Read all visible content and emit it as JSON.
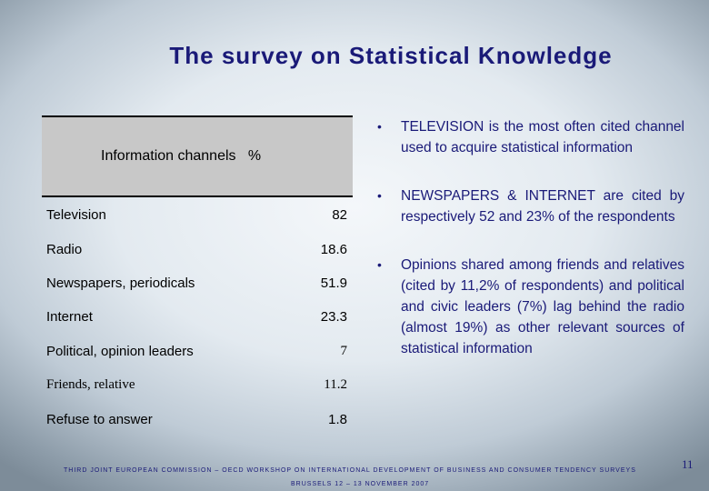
{
  "title": "The survey on Statistical Knowledge",
  "table": {
    "header": "Information channels   %",
    "rows": [
      {
        "label": "Television",
        "value": "82"
      },
      {
        "label": "Radio",
        "value": "18.6"
      },
      {
        "label": "Newspapers, periodicals",
        "value": "51.9"
      },
      {
        "label": "Internet",
        "value": "23.3"
      },
      {
        "label": "Political, opinion leaders",
        "value": "7"
      },
      {
        "label": "Friends, relative",
        "value": "11.2"
      },
      {
        "label": "Refuse to answer",
        "value": "1.8"
      }
    ]
  },
  "bullets": [
    "TELEVISION is the most often cited channel used to acquire statistical information",
    "NEWSPAPERS & INTERNET are cited by respectively 52 and 23% of the respondents",
    "Opinions shared among friends and relatives (cited by 11,2% of respondents) and political and civic leaders (7%) lag behind the radio (almost 19%) as other relevant sources of statistical information"
  ],
  "footer": {
    "line1": "THIRD JOINT EUROPEAN COMMISSION – OECD WORKSHOP ON INTERNATIONAL DEVELOPMENT OF BUSINESS AND CONSUMER TENDENCY SURVEYS",
    "line2": "BRUSSELS   12 – 13 NOVEMBER 2007"
  },
  "page_number": "11"
}
